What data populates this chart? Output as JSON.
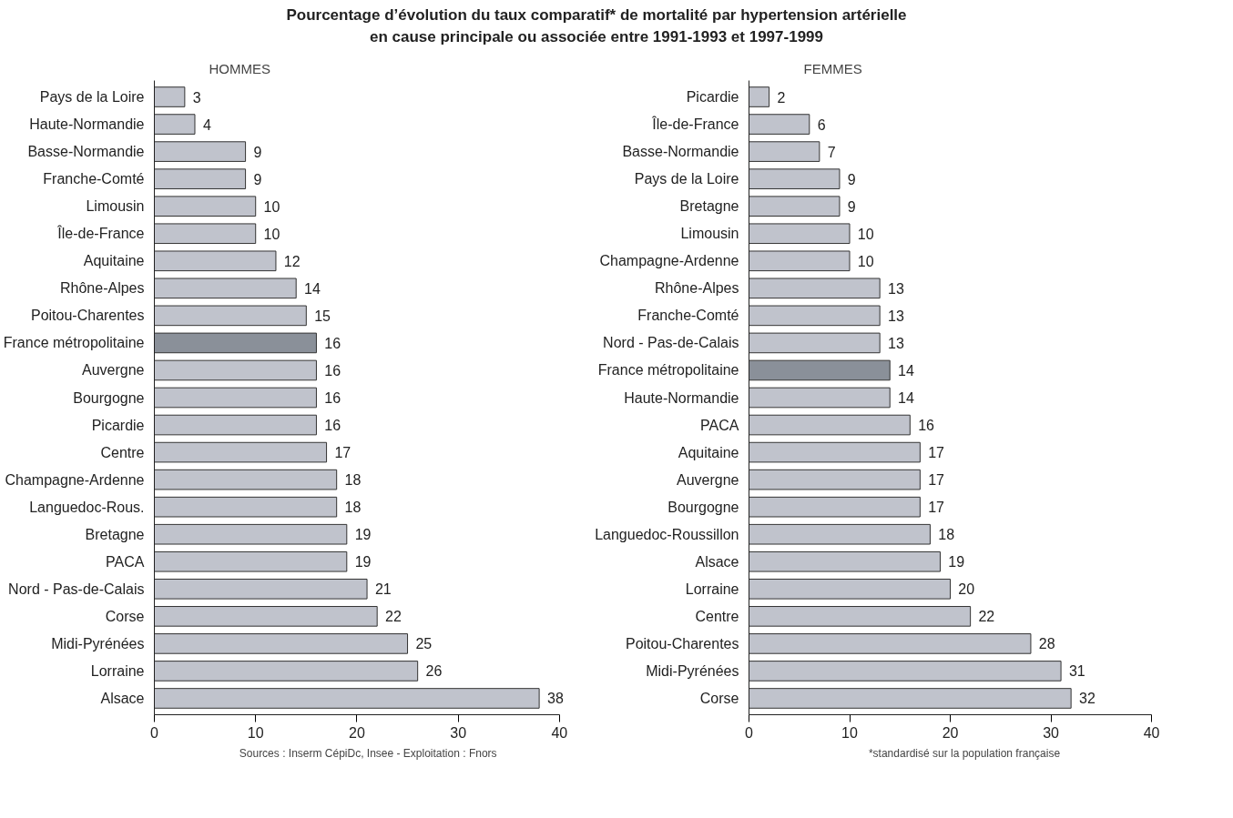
{
  "chart_data": [
    {
      "type": "bar",
      "orientation": "horizontal",
      "title": "Pourcentage d’évolution du taux comparatif* de mortalité par hypertension artérielle\nen cause principale ou associée entre 1991-1993 et 1997-1999",
      "subtitle": "HOMMES",
      "categories": [
        "Pays de la Loire",
        "Haute-Normandie",
        "Basse-Normandie",
        "Franche-Comté",
        "Limousin",
        "Île-de-France",
        "Aquitaine",
        "Rhône-Alpes",
        "Poitou-Charentes",
        "France métropolitaine",
        "Auvergne",
        "Bourgogne",
        "Picardie",
        "Centre",
        "Champagne-Ardenne",
        "Languedoc-Rous.",
        "Bretagne",
        "PACA",
        "Nord - Pas-de-Calais",
        "Corse",
        "Midi-Pyrénées",
        "Lorraine",
        "Alsace"
      ],
      "values": [
        3,
        4,
        9,
        9,
        10,
        10,
        12,
        14,
        15,
        16,
        16,
        16,
        16,
        17,
        18,
        18,
        19,
        19,
        21,
        22,
        25,
        26,
        38
      ],
      "colors": [
        "#c0c3cc",
        "#c0c3cc",
        "#c0c3cc",
        "#c0c3cc",
        "#c0c3cc",
        "#c0c3cc",
        "#c0c3cc",
        "#c0c3cc",
        "#c0c3cc",
        "#8a9099",
        "#c0c3cc",
        "#c0c3cc",
        "#c0c3cc",
        "#c0c3cc",
        "#c0c3cc",
        "#c0c3cc",
        "#c0c3cc",
        "#c0c3cc",
        "#c0c3cc",
        "#c0c3cc",
        "#c0c3cc",
        "#c0c3cc",
        "#c0c3cc"
      ],
      "xlim": [
        0,
        40
      ],
      "xticks": [
        0,
        10,
        20,
        30,
        40
      ],
      "grid": false,
      "data_labels": true,
      "annotations": [
        "Sources : Inserm CépiDc, Insee  -  Exploitation : Fnors"
      ]
    },
    {
      "type": "bar",
      "orientation": "horizontal",
      "subtitle": "FEMMES",
      "categories": [
        "Picardie",
        "Île-de-France",
        "Basse-Normandie",
        "Pays de la Loire",
        "Bretagne",
        "Limousin",
        "Champagne-Ardenne",
        "Rhône-Alpes",
        "Franche-Comté",
        "Nord - Pas-de-Calais",
        "France métropolitaine",
        "Haute-Normandie",
        "PACA",
        "Aquitaine",
        "Auvergne",
        "Bourgogne",
        "Languedoc-Roussillon",
        "Alsace",
        "Lorraine",
        "Centre",
        "Poitou-Charentes",
        "Midi-Pyrénées",
        "Corse"
      ],
      "values": [
        2,
        6,
        7,
        9,
        9,
        10,
        10,
        13,
        13,
        13,
        14,
        14,
        16,
        17,
        17,
        17,
        18,
        19,
        20,
        22,
        28,
        31,
        32
      ],
      "colors": [
        "#c0c3cc",
        "#c0c3cc",
        "#c0c3cc",
        "#c0c3cc",
        "#c0c3cc",
        "#c0c3cc",
        "#c0c3cc",
        "#c0c3cc",
        "#c0c3cc",
        "#c0c3cc",
        "#8a9099",
        "#c0c3cc",
        "#c0c3cc",
        "#c0c3cc",
        "#c0c3cc",
        "#c0c3cc",
        "#c0c3cc",
        "#c0c3cc",
        "#c0c3cc",
        "#c0c3cc",
        "#c0c3cc",
        "#c0c3cc",
        "#c0c3cc"
      ],
      "xlim": [
        0,
        40
      ],
      "xticks": [
        0,
        10,
        20,
        30,
        40
      ],
      "grid": false,
      "data_labels": true,
      "annotations": [
        "*standardisé sur la population française"
      ]
    }
  ]
}
